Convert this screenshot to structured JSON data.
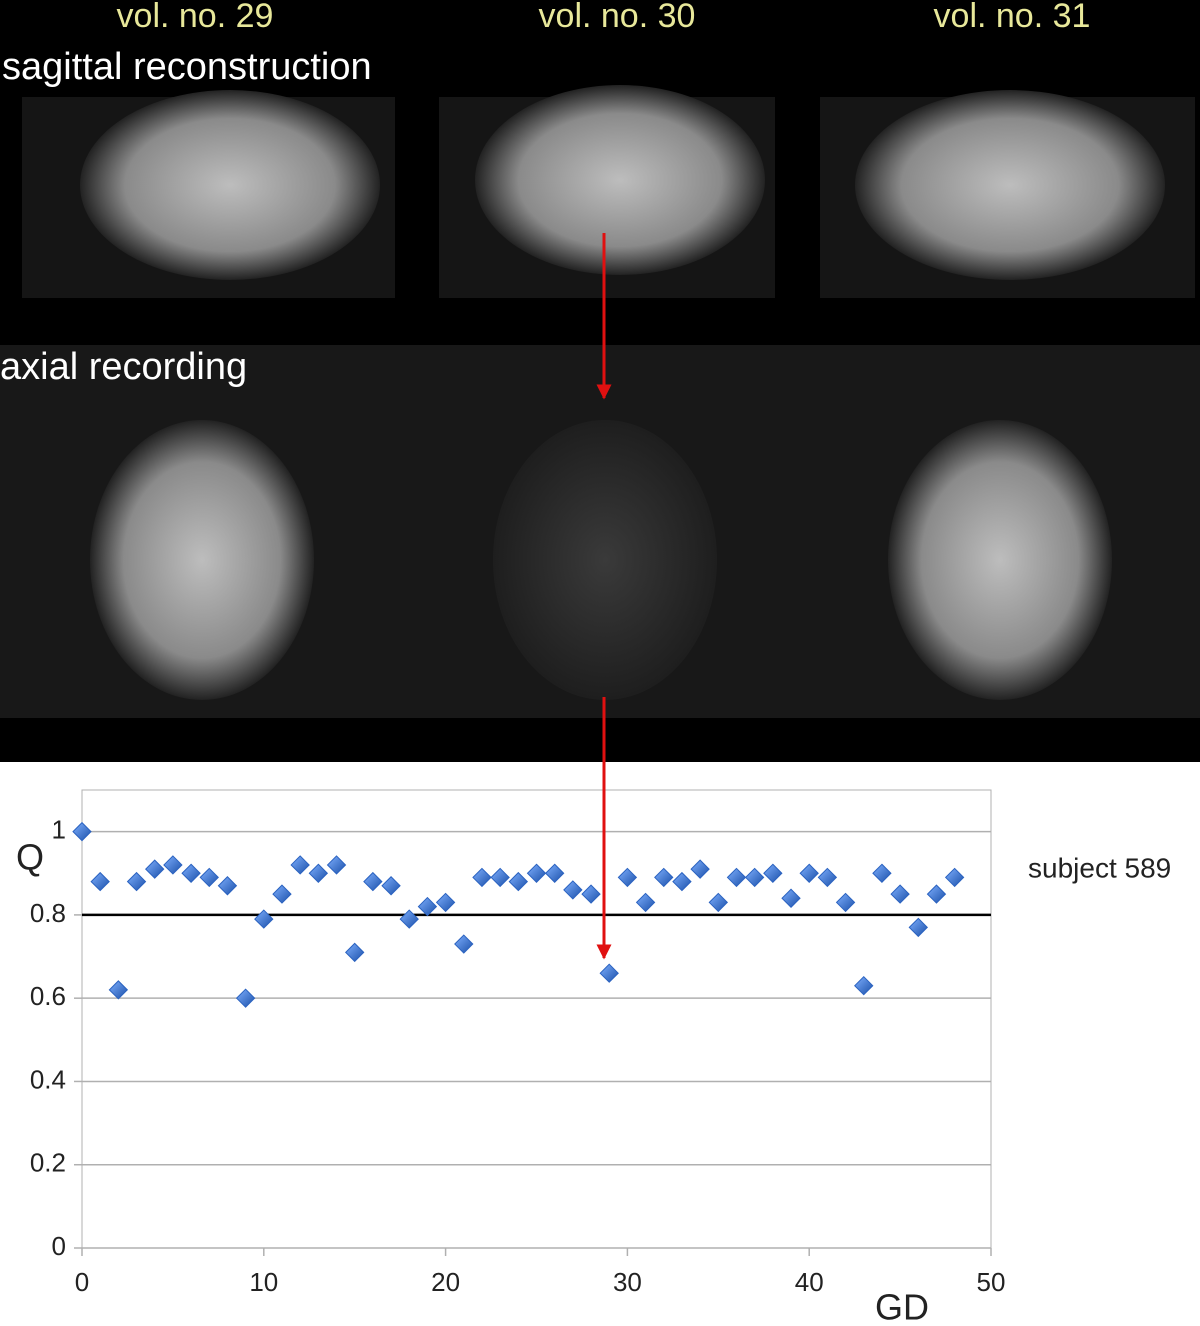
{
  "image_labels": {
    "volumes": [
      "vol. no. 29",
      "vol. no. 30",
      "vol. no. 31"
    ],
    "rows": [
      "sagittal reconstruction",
      "axial recording"
    ]
  },
  "chart_data": {
    "type": "scatter",
    "y_label": "Q",
    "x_label": "GD",
    "annotation": "subject 589",
    "x": [
      0,
      1,
      2,
      3,
      4,
      5,
      6,
      7,
      8,
      9,
      10,
      11,
      12,
      13,
      14,
      15,
      16,
      17,
      18,
      19,
      20,
      21,
      22,
      23,
      24,
      25,
      26,
      27,
      28,
      29,
      30,
      31,
      32,
      33,
      34,
      35,
      36,
      37,
      38,
      39,
      40,
      41,
      42,
      43,
      44,
      45,
      46,
      47,
      48
    ],
    "values": [
      1.0,
      0.88,
      0.62,
      0.88,
      0.91,
      0.92,
      0.9,
      0.89,
      0.87,
      0.6,
      0.79,
      0.85,
      0.92,
      0.9,
      0.92,
      0.71,
      0.88,
      0.87,
      0.79,
      0.82,
      0.83,
      0.73,
      0.89,
      0.89,
      0.88,
      0.9,
      0.9,
      0.86,
      0.85,
      0.66,
      0.89,
      0.83,
      0.89,
      0.88,
      0.91,
      0.83,
      0.89,
      0.89,
      0.9,
      0.84,
      0.9,
      0.89,
      0.83,
      0.63,
      0.9,
      0.85,
      0.77,
      0.85,
      0.89
    ],
    "color": "#2a62c0",
    "xlim": [
      0,
      50
    ],
    "xticks": [
      0,
      10,
      20,
      30,
      40,
      50
    ],
    "ylim": [
      0,
      1.1
    ],
    "yticks": [
      0,
      0.2,
      0.4,
      0.6,
      0.8,
      1
    ],
    "grid": true,
    "hline": 0.8
  }
}
